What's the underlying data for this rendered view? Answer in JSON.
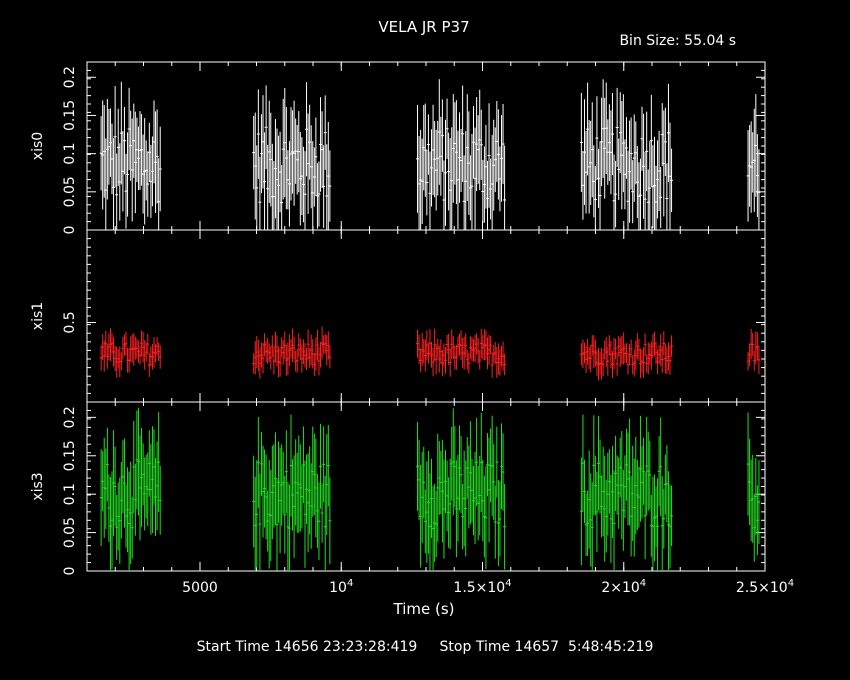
{
  "chart_data": {
    "type": "scatter",
    "title": "VELA JR P37",
    "bin_size_label": "Bin Size: 55.04 s",
    "xlabel": "Time (s)",
    "xlim": [
      1000,
      25000
    ],
    "x_ticks": [
      {
        "value": 5000,
        "label": "5000",
        "exp": ""
      },
      {
        "value": 10000,
        "label": "10",
        "exp": "4"
      },
      {
        "value": 15000,
        "label": "1.5×10",
        "exp": "4"
      },
      {
        "value": 20000,
        "label": "2×10",
        "exp": "4"
      },
      {
        "value": 25000,
        "label": "2.5×10",
        "exp": "4"
      }
    ],
    "footer_label": "Start Time 14656 23:23:28:419     Stop Time 14657  5:48:45:219",
    "panels": [
      {
        "name": "xis0",
        "ylabel": "xis0",
        "color": "#ffffff",
        "ylim": [
          0,
          0.22
        ],
        "y_ticks": [
          {
            "value": 0,
            "label": "0"
          },
          {
            "value": 0.05,
            "label": "0.05"
          },
          {
            "value": 0.1,
            "label": "0.1"
          },
          {
            "value": 0.15,
            "label": "0.15"
          },
          {
            "value": 0.2,
            "label": "0.2"
          }
        ],
        "segments": [
          [
            1500,
            3600
          ],
          [
            6900,
            9600
          ],
          [
            12700,
            15800
          ],
          [
            18500,
            21700
          ],
          [
            24400,
            24800
          ]
        ],
        "mean": 0.085,
        "spread": 0.05,
        "err": 0.055
      },
      {
        "name": "xis1",
        "ylabel": "xis1",
        "color": "#ff2020",
        "ylim": [
          0.07,
          1.0
        ],
        "y_ticks": [
          {
            "value": 0.5,
            "label": "0.5"
          }
        ],
        "segments": [
          [
            1500,
            3600
          ],
          [
            6900,
            9600
          ],
          [
            12700,
            15800
          ],
          [
            18500,
            21700
          ],
          [
            24400,
            24800
          ]
        ],
        "mean": 0.33,
        "spread": 0.06,
        "err": 0.07
      },
      {
        "name": "xis3",
        "ylabel": "xis3",
        "color": "#20e020",
        "ylim": [
          0,
          0.22
        ],
        "y_ticks": [
          {
            "value": 0,
            "label": "0"
          },
          {
            "value": 0.05,
            "label": "0.05"
          },
          {
            "value": 0.1,
            "label": "0.1"
          },
          {
            "value": 0.15,
            "label": "0.15"
          },
          {
            "value": 0.2,
            "label": "0.2"
          }
        ],
        "segments": [
          [
            1500,
            3600
          ],
          [
            6900,
            9600
          ],
          [
            12700,
            15800
          ],
          [
            18500,
            21700
          ],
          [
            24400,
            24800
          ]
        ],
        "mean": 0.1,
        "spread": 0.045,
        "err": 0.055
      }
    ]
  }
}
